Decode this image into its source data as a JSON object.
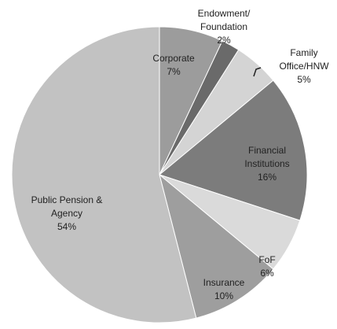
{
  "chart_data": {
    "type": "pie",
    "categories": [
      "Corporate",
      "Endowment/\nFoundation",
      "Family\nOffice/HNW",
      "Financial\nInstitutions",
      "FoF",
      "Insurance",
      "Public Pension &\nAgency"
    ],
    "values": [
      7,
      2,
      5,
      16,
      6,
      10,
      54
    ],
    "value_labels": [
      "7%",
      "2%",
      "5%",
      "16%",
      "6%",
      "10%",
      "54%"
    ],
    "colors": [
      "#9c9c9c",
      "#6a6a6a",
      "#d4d4d4",
      "#7c7c7c",
      "#dadada",
      "#9e9e9e",
      "#c2c2c2"
    ]
  }
}
